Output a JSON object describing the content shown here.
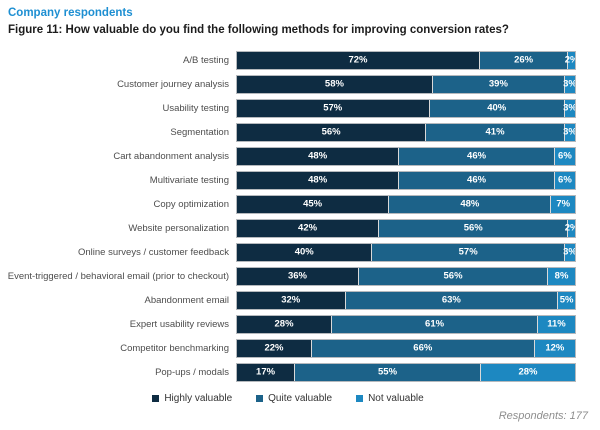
{
  "header": {
    "eyebrow": "Company respondents",
    "title": "Figure 11: How valuable do you find the following methods for improving conversion rates?"
  },
  "chart_data": {
    "type": "bar",
    "orientation": "horizontal",
    "stacked": true,
    "value_suffix": "%",
    "xlim": [
      0,
      100
    ],
    "grid": false,
    "legend_position": "bottom",
    "categories": [
      "A/B testing",
      "Customer journey analysis",
      "Usability testing",
      "Segmentation",
      "Cart abandonment analysis",
      "Multivariate testing",
      "Copy optimization",
      "Website personalization",
      "Online surveys / customer feedback",
      "Event-triggered / behavioral email (prior to checkout)",
      "Abandonment email",
      "Expert usability reviews",
      "Competitor benchmarking",
      "Pop-ups / modals"
    ],
    "series": [
      {
        "name": "Highly valuable",
        "color": "#0e2c42",
        "values": [
          72,
          58,
          57,
          56,
          48,
          48,
          45,
          42,
          40,
          36,
          32,
          28,
          22,
          17
        ]
      },
      {
        "name": "Quite valuable",
        "color": "#1c6289",
        "values": [
          26,
          39,
          40,
          41,
          46,
          46,
          48,
          56,
          57,
          56,
          63,
          61,
          66,
          55
        ]
      },
      {
        "name": "Not valuable",
        "color": "#1d88c1",
        "values": [
          2,
          3,
          3,
          3,
          6,
          6,
          7,
          2,
          3,
          8,
          5,
          11,
          12,
          28
        ]
      }
    ]
  },
  "footer": {
    "respondents": "Respondents: 177"
  }
}
